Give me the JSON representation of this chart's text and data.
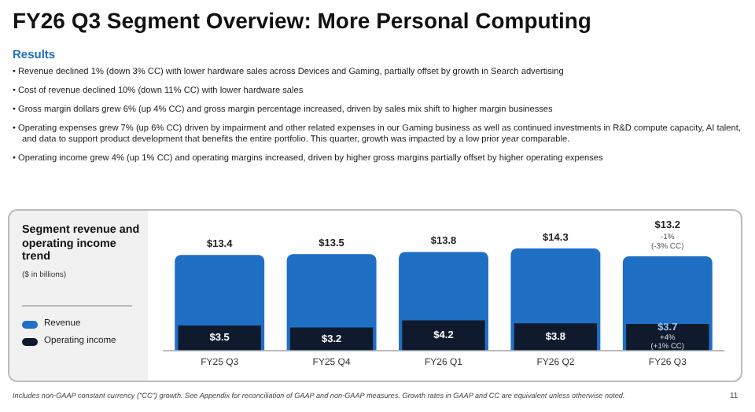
{
  "chart_data": {
    "type": "bar",
    "title": "FY26 Q3 Segment Overview: More Personal Computing",
    "subtitle": "Segment revenue and operating income trend",
    "categories": [
      "FY25 Q3",
      "FY25 Q4",
      "FY26 Q1",
      "FY26 Q2",
      "FY26 Q3"
    ],
    "series": [
      {
        "name": "Revenue",
        "color": "#1f6fc5",
        "values": [
          13.4,
          13.5,
          13.8,
          14.3,
          13.2
        ],
        "value_labels": [
          "$13.4",
          "$13.5",
          "$13.8",
          "$14.3",
          "$13.2"
        ]
      },
      {
        "name": "Operating income",
        "color": "#0f1b2d",
        "values": [
          3.5,
          3.2,
          4.2,
          3.8,
          3.7
        ],
        "value_labels": [
          "$3.5",
          "$3.2",
          "$4.2",
          "$3.8",
          "$3.7"
        ]
      }
    ],
    "legend": "left",
    "grid": false,
    "annotations": [
      "Results",
      "($ in billions)",
      "• Revenue declined 1% (down 3% CC) with lower hardware sales across Devices and Gaming, partially offset by growth in Search advertising",
      "• Cost of revenue declined 10% (down 11% CC) with lower hardware sales",
      "• Gross margin dollars grew 6% (up 4% CC) and gross margin percentage increased, driven by sales mix shift to higher margin businesses",
      "• Operating expenses grew 7% (up 6% CC) driven by impairment and other related expenses in our Gaming business as well as continued investments in R&D compute capacity, AI talent, and data to support product development that benefits the entire portfolio. This quarter, growth was impacted by a low prior year comparable.",
      "• Operating income grew 4% (up 1% CC) and operating margins increased, driven by higher gross margins partially offset by higher operating expenses",
      {
        "text": "-1%",
        "x": "FY26 Q3",
        "y": 13.2
      },
      {
        "text": "(-3% CC)",
        "x": "FY26 Q3",
        "y": 13.2
      },
      {
        "text": "+4%",
        "x": "FY26 Q3",
        "y": 3.7
      },
      {
        "text": "(+1% CC)",
        "x": "FY26 Q3",
        "y": 3.7
      },
      "Includes non-GAAP constant currency (\"CC\") growth. See Appendix for reconciliation of GAAP and non-GAAP measures. Growth rates in GAAP and CC are equivalent unless otherwise noted.",
      "11"
    ]
  }
}
